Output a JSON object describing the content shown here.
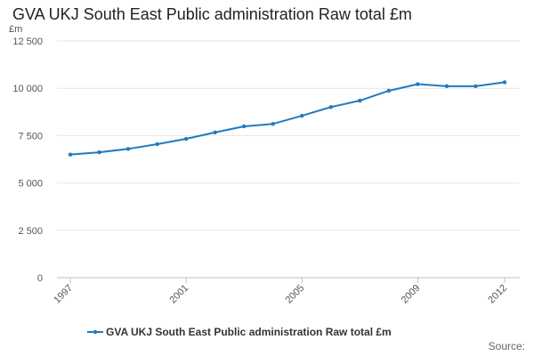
{
  "colors": {
    "series": "#1f7bbf",
    "grid": "#e6e6e6",
    "axis": "#c0c0c0"
  },
  "chart_data": {
    "type": "line",
    "title": "GVA UKJ South East Public administration Raw total £m",
    "ylabel": "£m",
    "xlabel": "",
    "ylim": [
      0,
      12500
    ],
    "yticks": [
      0,
      2500,
      5000,
      7500,
      10000,
      12500
    ],
    "ytick_labels": [
      "0",
      "2 500",
      "5 000",
      "7 500",
      "10 000",
      "12 500"
    ],
    "xlim": [
      1997,
      2012
    ],
    "xticks": [
      1997,
      2001,
      2005,
      2009,
      2012
    ],
    "xtick_labels": [
      "1997",
      "2001",
      "2005",
      "2009",
      "2012"
    ],
    "grid": true,
    "legend_position": "bottom-left",
    "source_label": "Source:",
    "series": [
      {
        "name": "GVA UKJ South East Public administration Raw total £m",
        "x": [
          1997,
          1998,
          1999,
          2000,
          2001,
          2002,
          2003,
          2004,
          2005,
          2006,
          2007,
          2008,
          2009,
          2010,
          2011,
          2012
        ],
        "values": [
          6500,
          6620,
          6800,
          7050,
          7330,
          7670,
          7990,
          8120,
          8550,
          9010,
          9350,
          9870,
          10220,
          10110,
          10110,
          10320
        ]
      }
    ]
  }
}
